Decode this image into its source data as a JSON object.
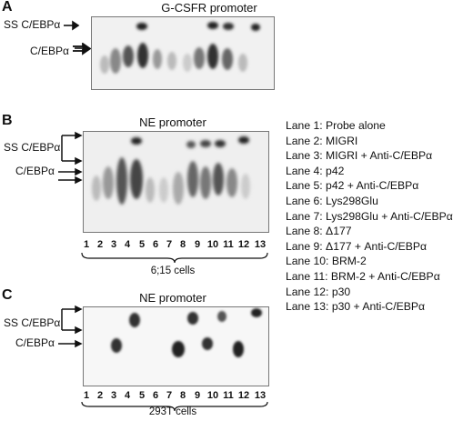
{
  "panels": [
    {
      "letter": "A",
      "title": "G-CSFR promoter",
      "band_labels": [
        "SS C/EBPα",
        "C/EBPα"
      ]
    },
    {
      "letter": "B",
      "title": "NE promoter",
      "band_labels": [
        "SS C/EBPα",
        "C/EBPα"
      ],
      "lane_numbers": [
        "1",
        "2",
        "3",
        "4",
        "5",
        "6",
        "7",
        "8",
        "9",
        "10",
        "11",
        "12",
        "13"
      ],
      "cells": "6;15 cells"
    },
    {
      "letter": "C",
      "title": "NE promoter",
      "band_labels": [
        "SS C/EBPα",
        "C/EBPα"
      ],
      "lane_numbers": [
        "1",
        "2",
        "3",
        "4",
        "5",
        "6",
        "7",
        "8",
        "9",
        "10",
        "11",
        "12",
        "13"
      ],
      "cells": "293T cells"
    }
  ],
  "legend": [
    "Lane 1: Probe alone",
    "Lane 2: MIGRI",
    "Lane 3: MIGRI + Anti-C/EBPα",
    "Lane 4: p42",
    "Lane 5: p42 + Anti-C/EBPα",
    "Lane 6: Lys298Glu",
    "Lane 7: Lys298Glu + Anti-C/EBPα",
    "Lane 8: Δ177",
    "Lane 9: Δ177 + Anti-C/EBPα",
    "Lane 10: BRM-2",
    "Lane 11: BRM-2 + Anti-C/EBPα",
    "Lane 12: p30",
    "Lane 13: p30 + Anti-C/EBPα"
  ],
  "colors": {
    "gel_bg": "#f2f2f2",
    "band": "#111111",
    "text": "#111111"
  }
}
